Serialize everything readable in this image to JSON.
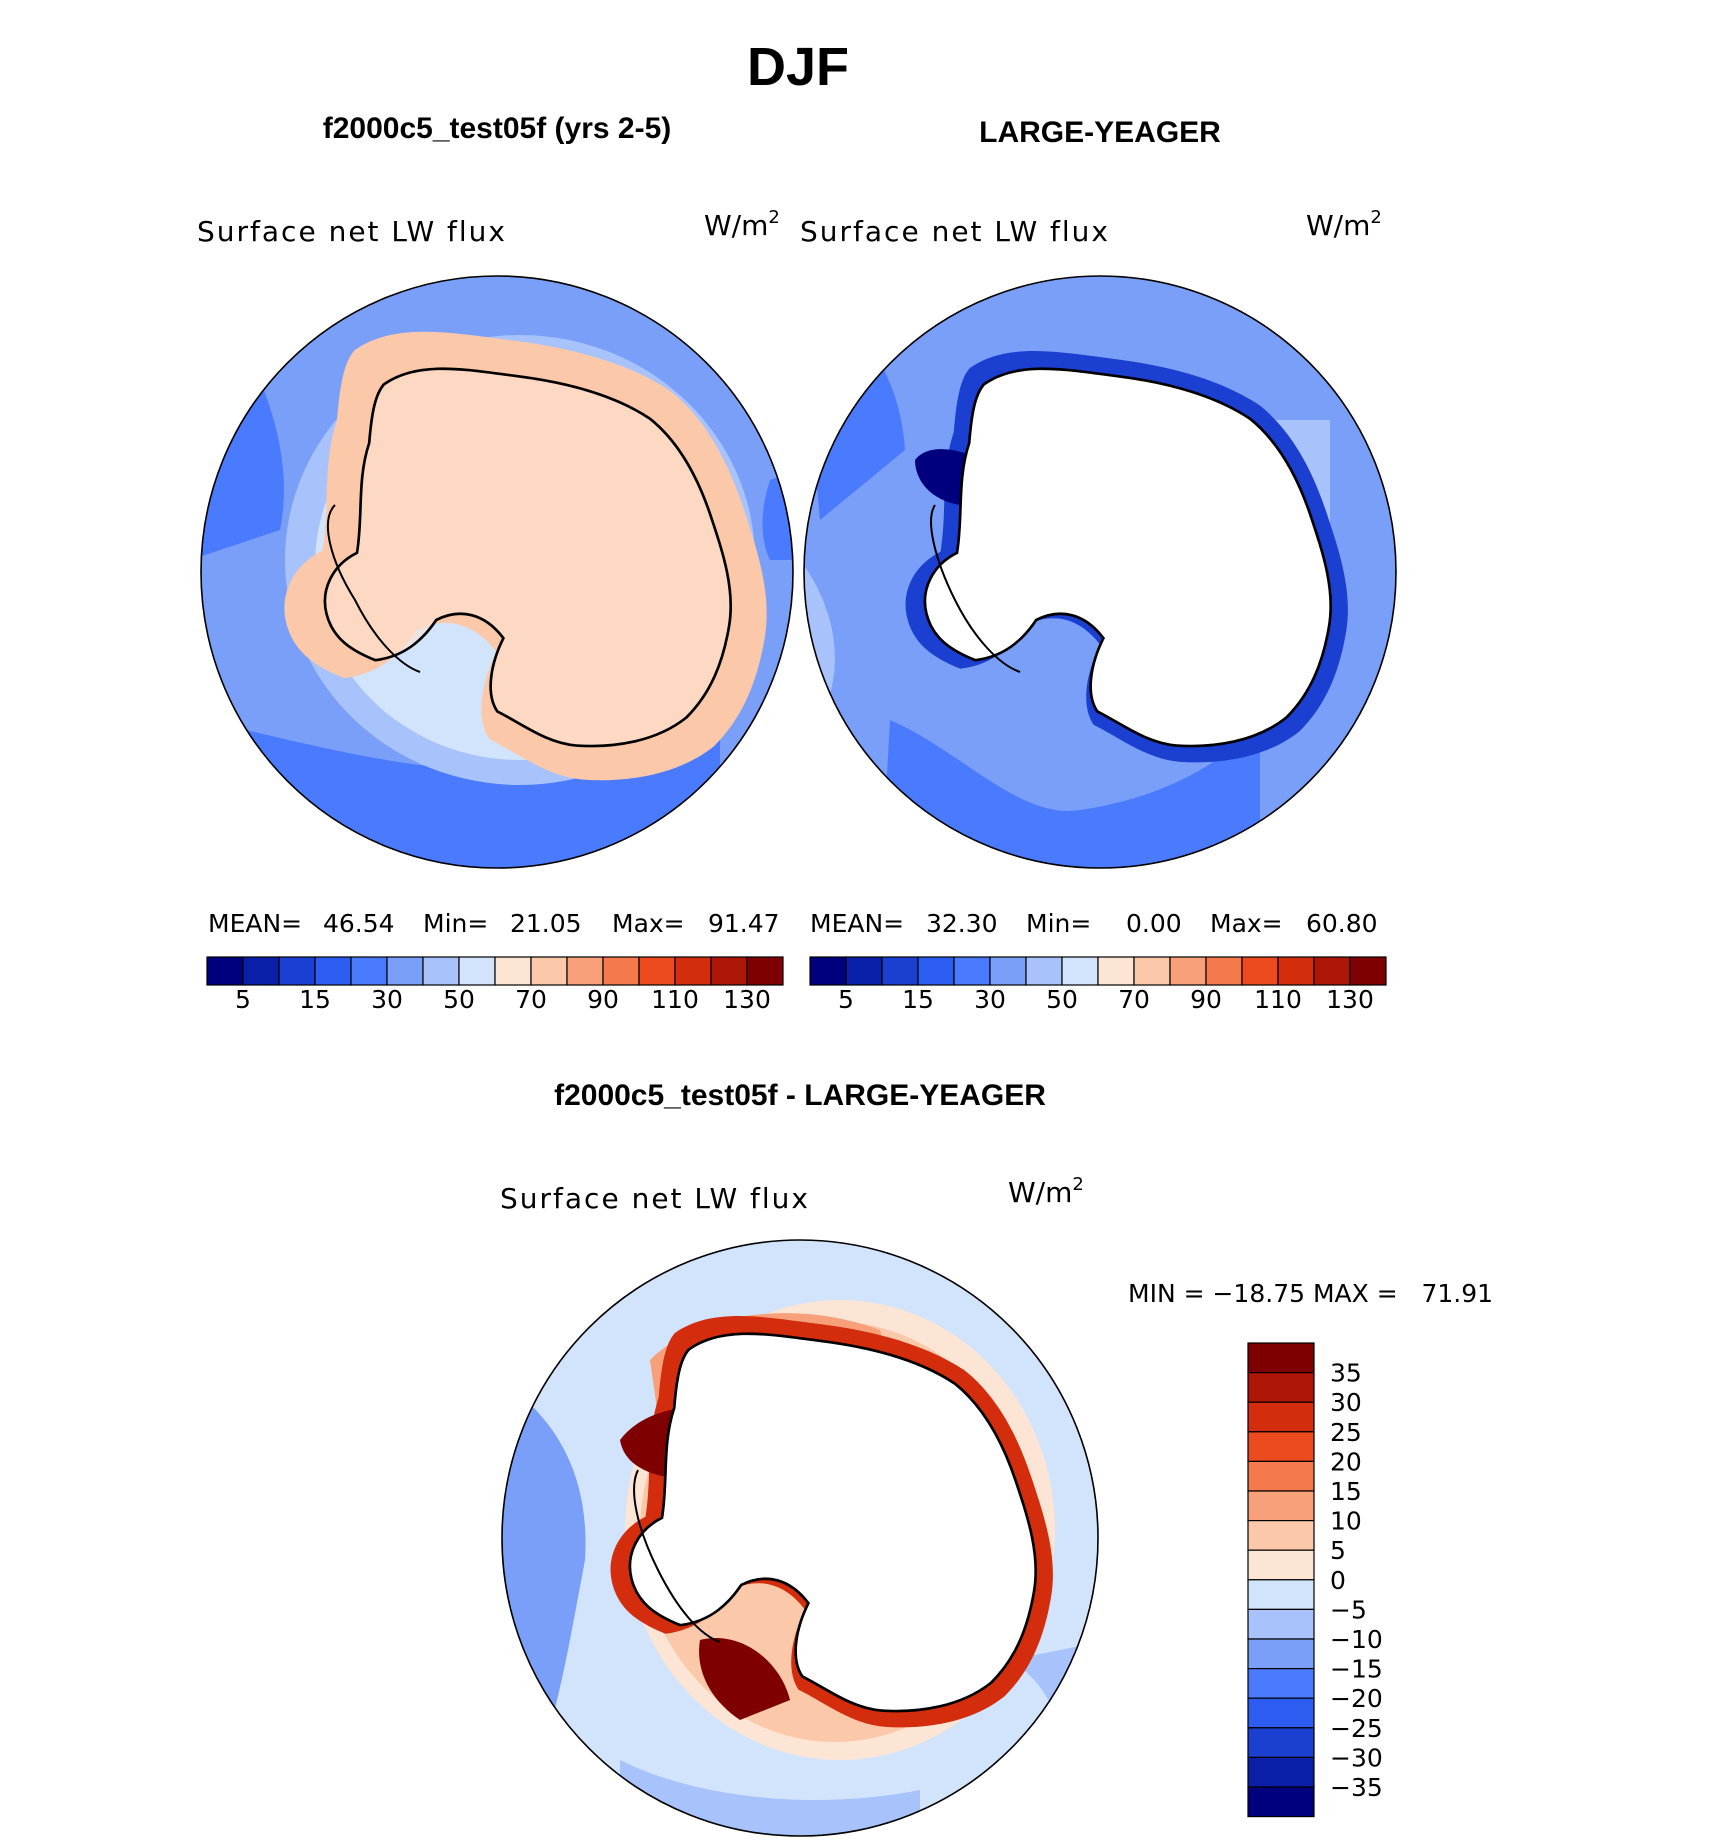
{
  "figure": {
    "title": "DJF",
    "panels": [
      {
        "title": "f2000c5_test05f (yrs 2-5)",
        "variable": "Surface net LW flux",
        "units_base": "W/m",
        "units_exp": "2",
        "stats": {
          "mean_label": "MEAN=",
          "mean": "46.54",
          "min_label": "Min=",
          "min": "21.05",
          "max_label": "Max=",
          "max": "91.47"
        }
      },
      {
        "title": "LARGE-YEAGER",
        "variable": "Surface net LW flux",
        "units_base": "W/m",
        "units_exp": "2",
        "stats": {
          "mean_label": "MEAN=",
          "mean": "32.30",
          "min_label": "Min=",
          "min": "0.00",
          "max_label": "Max=",
          "max": "60.80"
        }
      }
    ],
    "diff_panel": {
      "title": "f2000c5_test05f - LARGE-YEAGER",
      "variable": "Surface net LW flux",
      "units_base": "W/m",
      "units_exp": "2",
      "minmax": "MIN = −18.75 MAX =   71.91"
    }
  },
  "abs_colorbar": {
    "colors": [
      "#00007f",
      "#0a1fa8",
      "#1b3fd0",
      "#2c5df0",
      "#4a7bff",
      "#7a9ff8",
      "#a8c3fb",
      "#d2e4fb",
      "#fde5d5",
      "#fcc8aa",
      "#f7a07a",
      "#f4794c",
      "#ec4a1f",
      "#d32d0d",
      "#ad1506",
      "#7f0000"
    ],
    "tick_labels": [
      "5",
      "15",
      "30",
      "50",
      "70",
      "90",
      "110",
      "130"
    ]
  },
  "diff_colorbar": {
    "colors": [
      "#7f0000",
      "#ad1506",
      "#d32d0d",
      "#ec4a1f",
      "#f4794c",
      "#f7a07a",
      "#fcc8aa",
      "#fde5d5",
      "#d2e4fb",
      "#a8c3fb",
      "#7a9ff8",
      "#4a7bff",
      "#2c5df0",
      "#1b3fd0",
      "#0a1fa8",
      "#00007f"
    ],
    "tick_labels": [
      "35",
      "30",
      "25",
      "20",
      "15",
      "10",
      "5",
      "0",
      "−5",
      "−10",
      "−15",
      "−20",
      "−25",
      "−30",
      "−35"
    ]
  }
}
